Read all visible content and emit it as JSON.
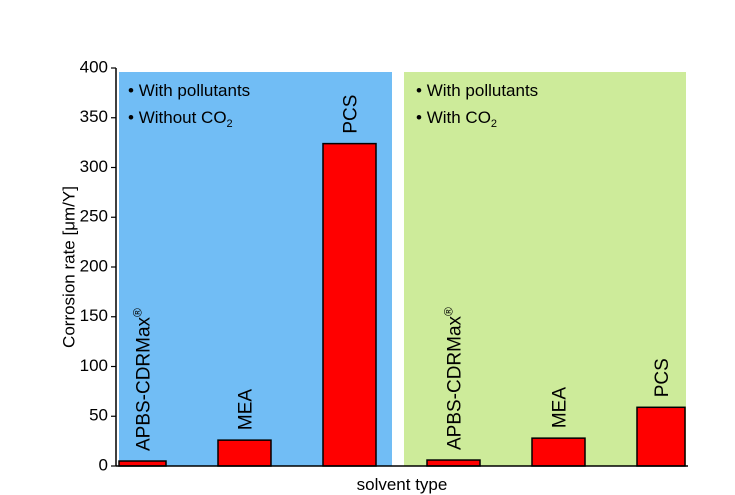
{
  "chart_data": {
    "type": "bar",
    "ylabel": "Corrosion rate [μm/Y]",
    "xlabel": "solvent type",
    "ylim": [
      0,
      400
    ],
    "yticks": [
      0,
      50,
      100,
      150,
      200,
      250,
      300,
      350,
      400
    ],
    "grid": false,
    "colors": {
      "bar": "#ff0000",
      "bar_edge": "#000000",
      "panel_left": "#71bdf5",
      "panel_right": "#cdeb9a"
    },
    "groups": [
      {
        "notes": [
          {
            "text": "With pollutants"
          },
          {
            "text": "Without CO",
            "sub": "2"
          }
        ],
        "categories": [
          "APBS-CDRMax",
          "MEA",
          "PCS"
        ],
        "category_sup": [
          "®",
          "",
          ""
        ],
        "values": [
          5,
          26,
          324
        ]
      },
      {
        "notes": [
          {
            "text": "With pollutants"
          },
          {
            "text": "With CO",
            "sub": "2"
          }
        ],
        "categories": [
          "APBS-CDRMax",
          "MEA",
          "PCS"
        ],
        "category_sup": [
          "®",
          "",
          ""
        ],
        "values": [
          6,
          28,
          59
        ]
      }
    ]
  }
}
